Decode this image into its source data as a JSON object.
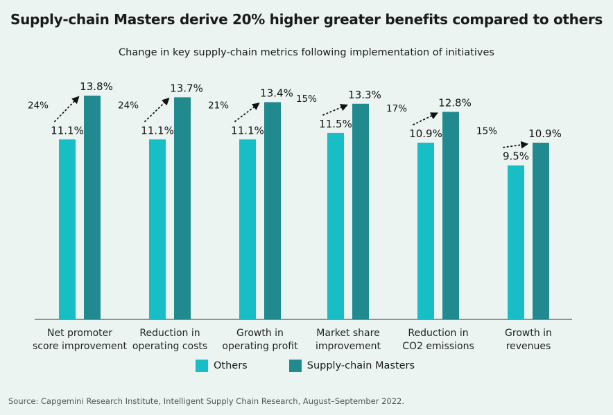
{
  "title": "Supply-chain Masters derive 20% higher greater benefits compared to others",
  "subtitle": "Change in key supply-chain metrics following implementation of initiatives",
  "source": "Source: Capgemini Research Institute, Intelligent Supply Chain Research, August–September 2022.",
  "colors": {
    "others": "#17bec6",
    "masters": "#218a8e",
    "background": "#ebf4f0"
  },
  "chart_data": {
    "type": "bar",
    "title": "Supply-chain Masters derive 20% higher greater benefits compared to others",
    "subtitle": "Change in key supply-chain metrics following implementation of initiatives",
    "categories": [
      [
        "Net promoter",
        "score improvement"
      ],
      [
        "Reduction in",
        "operating costs"
      ],
      [
        "Growth in",
        "operating profit"
      ],
      [
        "Market share",
        "improvement"
      ],
      [
        "Reduction in",
        "CO2 emissions"
      ],
      [
        "Growth in",
        "revenues"
      ]
    ],
    "series": [
      {
        "name": "Others",
        "values": [
          11.1,
          11.1,
          11.1,
          11.5,
          10.9,
          9.5
        ],
        "labels": [
          "11.1%",
          "11.1%",
          "11.1%",
          "11.5%",
          "10.9%",
          "9.5%"
        ]
      },
      {
        "name": "Supply-chain Masters",
        "values": [
          13.8,
          13.7,
          13.4,
          13.3,
          12.8,
          10.9
        ],
        "labels": [
          "13.8%",
          "13.7%",
          "13.4%",
          "13.3%",
          "12.8%",
          "10.9%"
        ]
      }
    ],
    "uplift_labels": [
      "24%",
      "24%",
      "21%",
      "15%",
      "17%",
      "15%"
    ],
    "ylim": [
      0,
      14
    ],
    "grid": false,
    "legend_position": "bottom"
  }
}
